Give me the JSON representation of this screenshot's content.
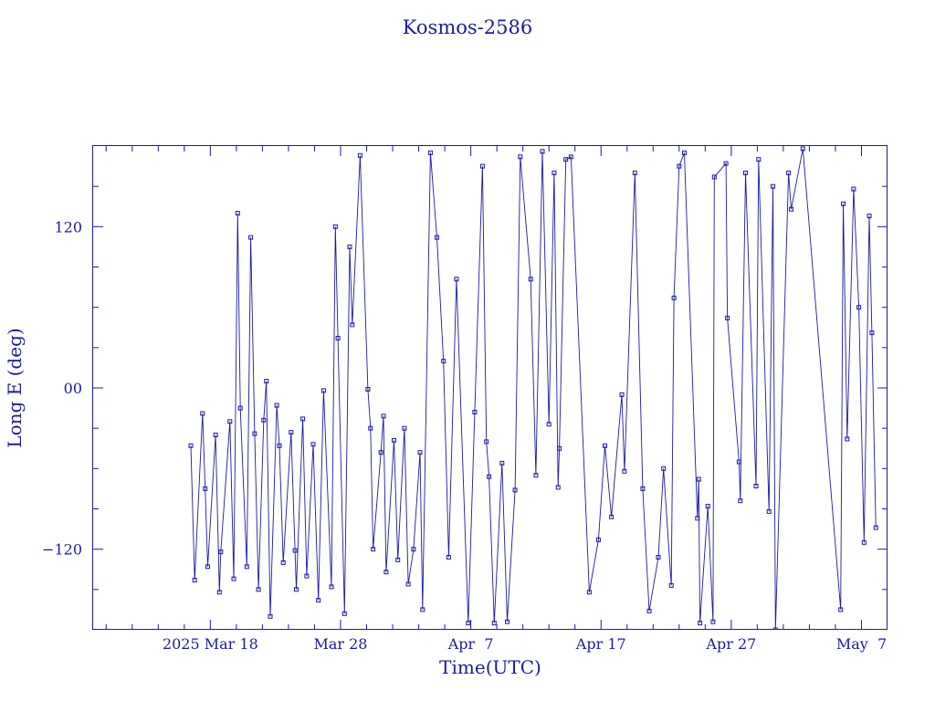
{
  "chart_data": {
    "type": "scatter",
    "title": "Kosmos-2586",
    "xlabel": "Time(UTC)",
    "ylabel": "Long E (deg)",
    "x_unit": "days",
    "x_start_date": "2025-03-09",
    "xlim": [
      0,
      61
    ],
    "ylim": [
      -180,
      180
    ],
    "x_ticks": [
      {
        "value": 9,
        "label": "2025 Mar 18"
      },
      {
        "value": 19,
        "label": "Mar 28"
      },
      {
        "value": 29,
        "label": "Apr  7"
      },
      {
        "value": 39,
        "label": "Apr 17"
      },
      {
        "value": 49,
        "label": "Apr 27"
      },
      {
        "value": 59,
        "label": "May  7"
      }
    ],
    "y_ticks": [
      {
        "value": 120,
        "label": "120"
      },
      {
        "value": 0,
        "label": "00"
      },
      {
        "value": -120,
        "label": "−120"
      }
    ],
    "grid": false,
    "connect_points": true,
    "series": [
      {
        "values": [
          [
            7.5,
            -43
          ],
          [
            7.8,
            -143
          ],
          [
            8.4,
            -19
          ],
          [
            8.6,
            -75
          ],
          [
            8.8,
            -133
          ],
          [
            9.4,
            -35
          ],
          [
            9.7,
            -152
          ],
          [
            9.8,
            -122
          ],
          [
            10.5,
            -25
          ],
          [
            10.8,
            -142
          ],
          [
            11.1,
            130
          ],
          [
            11.3,
            -15
          ],
          [
            11.8,
            -133
          ],
          [
            12.1,
            112
          ],
          [
            12.4,
            -34
          ],
          [
            12.7,
            -150
          ],
          [
            13.1,
            -24
          ],
          [
            13.3,
            5
          ],
          [
            13.6,
            -170
          ],
          [
            14.1,
            -13
          ],
          [
            14.3,
            -43
          ],
          [
            14.6,
            -130
          ],
          [
            15.2,
            -33
          ],
          [
            15.5,
            -121
          ],
          [
            15.6,
            -150
          ],
          [
            16.1,
            -23
          ],
          [
            16.4,
            -140
          ],
          [
            16.9,
            -42
          ],
          [
            17.3,
            -158
          ],
          [
            17.7,
            -2
          ],
          [
            18.3,
            -148
          ],
          [
            18.6,
            120
          ],
          [
            18.8,
            37
          ],
          [
            19.3,
            -168
          ],
          [
            19.7,
            105
          ],
          [
            19.9,
            47
          ],
          [
            20.5,
            173
          ],
          [
            21.1,
            -1
          ],
          [
            21.3,
            -30
          ],
          [
            21.5,
            -120
          ],
          [
            22.1,
            -48
          ],
          [
            22.3,
            -21
          ],
          [
            22.5,
            -137
          ],
          [
            23.1,
            -39
          ],
          [
            23.4,
            -128
          ],
          [
            23.9,
            -30
          ],
          [
            24.2,
            -146
          ],
          [
            24.6,
            -120
          ],
          [
            25.1,
            -48
          ],
          [
            25.3,
            -165
          ],
          [
            25.9,
            175
          ],
          [
            26.4,
            112
          ],
          [
            26.9,
            20
          ],
          [
            27.3,
            -126
          ],
          [
            27.9,
            81
          ],
          [
            28.8,
            -175
          ],
          [
            29.3,
            -18
          ],
          [
            29.9,
            165
          ],
          [
            30.2,
            -40
          ],
          [
            30.4,
            -66
          ],
          [
            30.8,
            -175
          ],
          [
            31.4,
            -56
          ],
          [
            31.8,
            -174
          ],
          [
            32.4,
            -76
          ],
          [
            32.8,
            172
          ],
          [
            33.6,
            81
          ],
          [
            34.0,
            -65
          ],
          [
            34.5,
            176
          ],
          [
            35.0,
            -27
          ],
          [
            35.4,
            160
          ],
          [
            35.7,
            -74
          ],
          [
            35.8,
            -45
          ],
          [
            36.3,
            170
          ],
          [
            36.7,
            172
          ],
          [
            38.1,
            -152
          ],
          [
            38.8,
            -113
          ],
          [
            39.3,
            -43
          ],
          [
            39.8,
            -96
          ],
          [
            40.6,
            -5
          ],
          [
            40.8,
            -62
          ],
          [
            41.6,
            160
          ],
          [
            42.2,
            -75
          ],
          [
            42.7,
            -166
          ],
          [
            43.4,
            -126
          ],
          [
            43.8,
            -60
          ],
          [
            44.4,
            -147
          ],
          [
            44.6,
            67
          ],
          [
            45.0,
            165
          ],
          [
            45.4,
            175
          ],
          [
            46.4,
            -97
          ],
          [
            46.5,
            -68
          ],
          [
            46.6,
            -175
          ],
          [
            47.2,
            -88
          ],
          [
            47.6,
            -174
          ],
          [
            47.7,
            157
          ],
          [
            48.6,
            167
          ],
          [
            48.7,
            52
          ],
          [
            49.6,
            -55
          ],
          [
            49.7,
            -84
          ],
          [
            50.1,
            160
          ],
          [
            50.9,
            -73
          ],
          [
            51.1,
            170
          ],
          [
            51.9,
            -92
          ],
          [
            52.2,
            150
          ],
          [
            52.4,
            -180
          ],
          [
            53.4,
            160
          ],
          [
            53.6,
            133
          ],
          [
            54.5,
            178
          ],
          [
            57.4,
            -165
          ],
          [
            57.6,
            137
          ],
          [
            57.9,
            -38
          ],
          [
            58.4,
            148
          ],
          [
            58.8,
            60
          ],
          [
            59.2,
            -115
          ],
          [
            59.6,
            128
          ],
          [
            59.8,
            41
          ],
          [
            60.1,
            -104
          ]
        ]
      }
    ]
  }
}
